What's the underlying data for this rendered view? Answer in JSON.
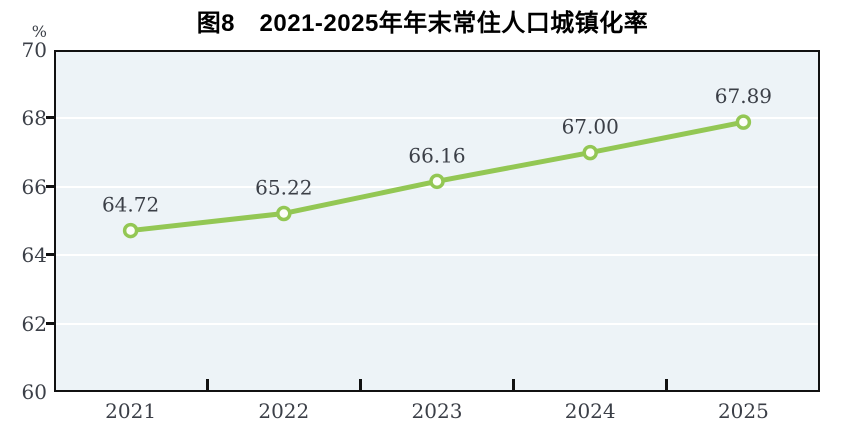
{
  "title": "图8　2021-2025年年末常住人口城镇化率",
  "y_axis": {
    "unit": "%",
    "tick_labels": [
      "70",
      "68",
      "66",
      "64",
      "62",
      "60"
    ]
  },
  "chart_data": {
    "type": "line",
    "title": "图8 2021-2025年年末常住人口城镇化率",
    "categories": [
      "2021",
      "2022",
      "2023",
      "2024",
      "2025"
    ],
    "values": [
      64.72,
      65.22,
      66.16,
      67.0,
      67.89
    ],
    "data_labels": [
      "64.72",
      "65.22",
      "66.16",
      "67.00",
      "67.89"
    ],
    "xlabel": "",
    "ylabel": "%",
    "ylim": [
      60,
      70
    ],
    "y_ticks": [
      70,
      68,
      66,
      64,
      62,
      60
    ],
    "grid": "horizontal-white-lines-at-62-64-66-68",
    "legend_position": "none",
    "colors": {
      "line": "#93c754",
      "marker_fill": "#fcfdf8",
      "plot_background": "#edf3f7",
      "axis_border": "#111111",
      "label_text": "#3b3f47",
      "title_text": "#000000"
    }
  }
}
